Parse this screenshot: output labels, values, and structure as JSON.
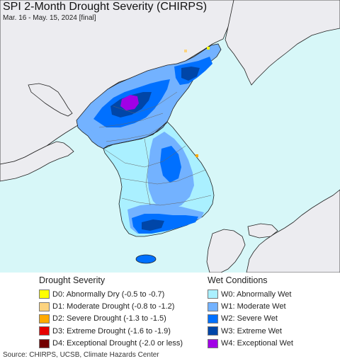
{
  "map": {
    "title": "SPI 2-Month Drought Severity (CHIRPS)",
    "subtitle": "Mar. 16 - May. 15, 2024 [final]",
    "colors": {
      "ocean": "#d7f7f8",
      "land_outside": "#ececf0",
      "coast_line": "#222222"
    }
  },
  "legend": {
    "drought_heading": "Drought Severity",
    "wet_heading": "Wet Conditions",
    "drought_items": [
      {
        "label": "D0: Abnormally Dry (-0.5 to -0.7)",
        "color": "#ffff00"
      },
      {
        "label": "D1: Moderate Drought (-0.8 to -1.2)",
        "color": "#fcd37f"
      },
      {
        "label": "D2: Severe Drought (-1.3 to -1.5)",
        "color": "#ffaa00"
      },
      {
        "label": "D3: Extreme Drought (-1.6 to -1.9)",
        "color": "#e60000"
      },
      {
        "label": "D4: Exceptional Drought (-2.0 or less)",
        "color": "#730000"
      }
    ],
    "wet_items": [
      {
        "label": "W0: Abnormally Wet",
        "color": "#aaf0ff"
      },
      {
        "label": "W1: Moderate Wet",
        "color": "#73b2ff"
      },
      {
        "label": "W2: Severe Wet",
        "color": "#0070ff"
      },
      {
        "label": "W3: Extreme Wet",
        "color": "#0046a8"
      },
      {
        "label": "W4: Exceptional Wet",
        "color": "#a100e6"
      }
    ]
  },
  "footer": {
    "source": "Source: CHIRPS, UCSB, Climate Hazards Center"
  }
}
